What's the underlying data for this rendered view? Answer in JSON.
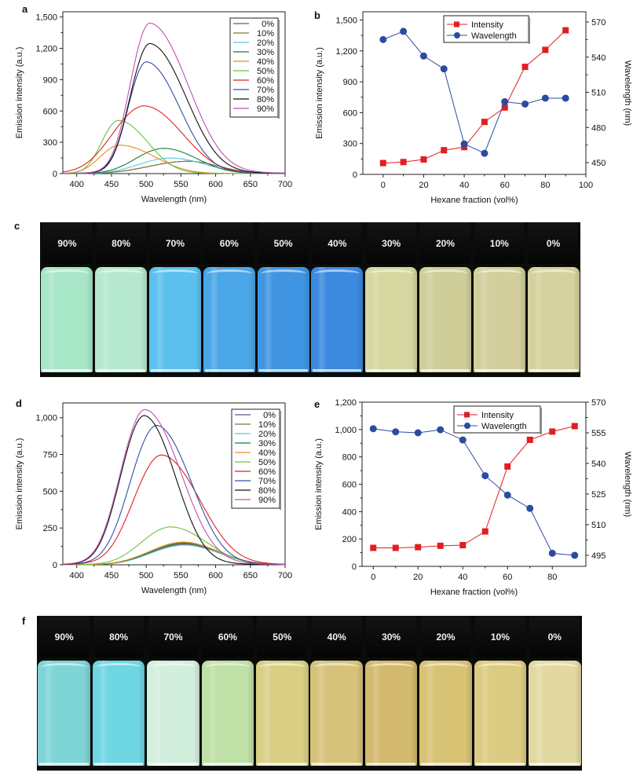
{
  "panels": {
    "a": "a",
    "b": "b",
    "c": "c",
    "d": "d",
    "e": "e",
    "f": "f"
  },
  "series_colors": {
    "0%": "#6a4fa0",
    "10%": "#7a7a30",
    "20%": "#5bc8d8",
    "30%": "#1a7a40",
    "40%": "#f08a20",
    "50%": "#6cc040",
    "60%": "#e02020",
    "70%": "#3050a8",
    "80%": "#111111",
    "90%": "#c050b0"
  },
  "intensity_color": "#e01e24",
  "wavelength_color": "#2c4aa0",
  "chart_data": [
    {
      "id": "a",
      "type": "line",
      "title": "",
      "xlabel": "Wavelength (nm)",
      "ylabel": "Emission intensity (a.u.)",
      "xlim": [
        380,
        700
      ],
      "ylim": [
        0,
        1550
      ],
      "xticks": [
        400,
        450,
        500,
        550,
        600,
        650,
        700
      ],
      "yticks": [
        0,
        300,
        600,
        900,
        1200,
        1500
      ],
      "ytick_labels": [
        "0",
        "300",
        "600",
        "900",
        "1,200",
        "1,500"
      ],
      "legend": "top-right",
      "series": [
        {
          "name": "0%",
          "peak_x": 560,
          "peak_y": 115,
          "width_l": 55,
          "width_r": 45
        },
        {
          "name": "10%",
          "peak_x": 560,
          "peak_y": 115,
          "width_l": 55,
          "width_r": 45
        },
        {
          "name": "20%",
          "peak_x": 535,
          "peak_y": 145,
          "width_l": 45,
          "width_r": 50
        },
        {
          "name": "30%",
          "peak_x": 525,
          "peak_y": 235,
          "width_l": 40,
          "width_r": 48
        },
        {
          "name": "40%",
          "peak_x": 462,
          "peak_y": 265,
          "width_l": 28,
          "width_r": 50
        },
        {
          "name": "50%",
          "peak_x": 460,
          "peak_y": 495,
          "width_l": 24,
          "width_r": 42
        },
        {
          "name": "60%",
          "peak_x": 497,
          "peak_y": 630,
          "width_l": 45,
          "width_r": 55
        },
        {
          "name": "70%",
          "peak_x": 500,
          "peak_y": 1040,
          "width_l": 26,
          "width_r": 48
        },
        {
          "name": "80%",
          "peak_x": 505,
          "peak_y": 1210,
          "width_l": 28,
          "width_r": 52
        },
        {
          "name": "90%",
          "peak_x": 505,
          "peak_y": 1400,
          "width_l": 28,
          "width_r": 55
        }
      ]
    },
    {
      "id": "b",
      "type": "line",
      "xlabel": "Hexane fraction (vol%)",
      "ylabel": "Emission intensity (a.u.)",
      "y2label": "Wavelength (nm)",
      "xlim": [
        -10,
        100
      ],
      "ylim": [
        0,
        1580
      ],
      "y2lim": [
        440,
        578.7
      ],
      "xticks": [
        0,
        20,
        40,
        60,
        80,
        100
      ],
      "yticks": [
        0,
        300,
        600,
        900,
        1200,
        1500
      ],
      "ytick_labels": [
        "0",
        "300",
        "600",
        "900",
        "1,200",
        "1,500"
      ],
      "y2ticks": [
        450,
        480,
        510,
        540,
        570
      ],
      "legend": "top-center",
      "x": [
        0,
        10,
        20,
        30,
        40,
        50,
        60,
        70,
        80,
        90
      ],
      "series": [
        {
          "name": "Intensity",
          "axis": "left",
          "marker": "square",
          "values": [
            110,
            120,
            145,
            235,
            265,
            510,
            650,
            1045,
            1210,
            1400
          ]
        },
        {
          "name": "Wavelength",
          "axis": "right",
          "marker": "circle",
          "values": [
            555,
            562,
            541,
            530,
            466,
            458,
            502,
            500,
            505,
            505
          ]
        }
      ]
    },
    {
      "id": "d",
      "type": "line",
      "xlabel": "Wavelength (nm)",
      "ylabel": "Emission intensity (a.u.)",
      "xlim": [
        380,
        700
      ],
      "ylim": [
        0,
        1100
      ],
      "xticks": [
        400,
        450,
        500,
        550,
        600,
        650,
        700
      ],
      "yticks": [
        0,
        250,
        500,
        750,
        1000
      ],
      "ytick_labels": [
        "0",
        "250",
        "500",
        "750",
        "1,000"
      ],
      "legend": "top-right",
      "series": [
        {
          "name": "0%",
          "peak_x": 555,
          "peak_y": 135,
          "width_l": 48,
          "width_r": 50
        },
        {
          "name": "10%",
          "peak_x": 555,
          "peak_y": 140,
          "width_l": 48,
          "width_r": 50
        },
        {
          "name": "20%",
          "peak_x": 555,
          "peak_y": 130,
          "width_l": 48,
          "width_r": 50
        },
        {
          "name": "30%",
          "peak_x": 555,
          "peak_y": 145,
          "width_l": 48,
          "width_r": 50
        },
        {
          "name": "40%",
          "peak_x": 553,
          "peak_y": 150,
          "width_l": 48,
          "width_r": 50
        },
        {
          "name": "50%",
          "peak_x": 535,
          "peak_y": 250,
          "width_l": 42,
          "width_r": 52
        },
        {
          "name": "60%",
          "peak_x": 522,
          "peak_y": 725,
          "width_l": 40,
          "width_r": 55
        },
        {
          "name": "70%",
          "peak_x": 515,
          "peak_y": 920,
          "width_l": 38,
          "width_r": 50
        },
        {
          "name": "80%",
          "peak_x": 497,
          "peak_y": 985,
          "width_l": 34,
          "width_r": 45
        },
        {
          "name": "90%",
          "peak_x": 498,
          "peak_y": 1025,
          "width_l": 35,
          "width_r": 52
        }
      ]
    },
    {
      "id": "e",
      "type": "line",
      "xlabel": "Hexane fraction (vol%)",
      "ylabel": "Emission intensity (a.u.)",
      "y2label": "Wavelength (nm)",
      "xlim": [
        -5,
        95
      ],
      "ylim": [
        0,
        1200
      ],
      "y2lim": [
        489.6,
        570
      ],
      "xticks": [
        0,
        20,
        40,
        60,
        80
      ],
      "yticks": [
        0,
        200,
        400,
        600,
        800,
        1000,
        1200
      ],
      "ytick_labels": [
        "0",
        "200",
        "400",
        "600",
        "800",
        "1,000",
        "1,200"
      ],
      "y2ticks": [
        495,
        510,
        525,
        540,
        555,
        570
      ],
      "legend": "top-center",
      "x": [
        0,
        10,
        20,
        30,
        40,
        50,
        60,
        70,
        80,
        90
      ],
      "series": [
        {
          "name": "Intensity",
          "axis": "left",
          "marker": "square",
          "values": [
            135,
            135,
            140,
            150,
            155,
            255,
            730,
            925,
            985,
            1025
          ]
        },
        {
          "name": "Wavelength",
          "axis": "right",
          "marker": "circle",
          "values": [
            557,
            555.5,
            555,
            556.5,
            551.5,
            534,
            524.5,
            518,
            496,
            495
          ]
        }
      ]
    }
  ],
  "photos": {
    "c": {
      "labels": [
        "90%",
        "80%",
        "70%",
        "60%",
        "50%",
        "40%",
        "30%",
        "20%",
        "10%",
        "0%"
      ],
      "colors": [
        "#a8e6c8",
        "#b6e8cf",
        "#5cc0ee",
        "#4aa6e6",
        "#3f95e2",
        "#3b8ae0",
        "#d6d6a0",
        "#cfcd98",
        "#d2cf9c",
        "#d4d19e"
      ]
    },
    "f": {
      "labels": [
        "90%",
        "80%",
        "70%",
        "60%",
        "50%",
        "40%",
        "30%",
        "20%",
        "10%",
        "0%"
      ],
      "colors": [
        "#7fd4d6",
        "#6fd6e4",
        "#d2eedd",
        "#bfe0a6",
        "#d8cf84",
        "#d6c27a",
        "#d2b96e",
        "#d8c274",
        "#dccb82",
        "#e2d9a2"
      ]
    }
  }
}
